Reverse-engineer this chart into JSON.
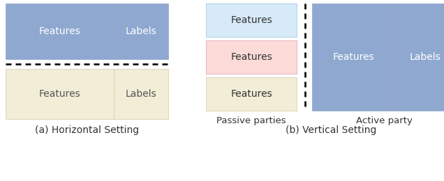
{
  "bg_color": "#ffffff",
  "blue_color": "#8FA8D0",
  "beige_color": "#F2EDD7",
  "light_blue_color": "#D6EAF8",
  "pink_color": "#FADBD8",
  "subtitle_a": "(a) Horizontal Setting",
  "subtitle_b": "(b) Vertical Setting",
  "passive_label": "Passive parties",
  "active_label": "Active party",
  "features_label": "Features",
  "labels_label": "Labels",
  "text_dark": "#333333",
  "text_white": "#ffffff",
  "text_mid": "#555555"
}
